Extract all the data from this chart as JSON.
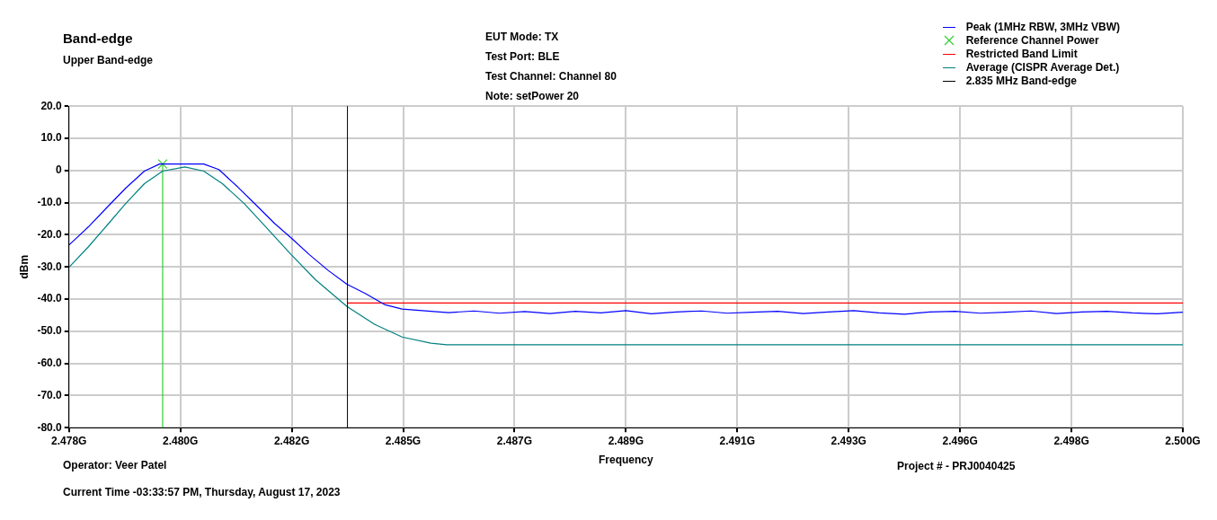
{
  "chart_data": {
    "type": "line",
    "title": "Band-edge",
    "subtitle": "Upper Band-edge",
    "xlabel": "Frequency",
    "ylabel": "dBm",
    "annotations": [
      "EUT Mode: TX",
      "Test Port: BLE",
      "Test Channel: Channel 80",
      "Note: setPower 20",
      "Operator: Veer Patel",
      "Current Time -03:33:57 PM, Thursday, August 17, 2023",
      "Project # - PRJ0040425"
    ],
    "xlim": [
      2.478,
      2.5
    ],
    "xticks": [
      {
        "value": 2.478,
        "label": "2.478G"
      },
      {
        "value": 2.4802,
        "label": "2.480G"
      },
      {
        "value": 2.4824,
        "label": "2.482G"
      },
      {
        "value": 2.4846,
        "label": "2.485G"
      },
      {
        "value": 2.4868,
        "label": "2.487G"
      },
      {
        "value": 2.489,
        "label": "2.489G"
      },
      {
        "value": 2.4912,
        "label": "2.491G"
      },
      {
        "value": 2.4934,
        "label": "2.493G"
      },
      {
        "value": 2.4956,
        "label": "2.496G"
      },
      {
        "value": 2.4978,
        "label": "2.498G"
      },
      {
        "value": 2.5,
        "label": "2.500G"
      }
    ],
    "ylim": [
      -80,
      20
    ],
    "yticks": [
      {
        "value": 20,
        "label": "20.0"
      },
      {
        "value": 10,
        "label": "10.0"
      },
      {
        "value": 0,
        "label": "0"
      },
      {
        "value": -10,
        "label": "-10.0"
      },
      {
        "value": -20,
        "label": "-20.0"
      },
      {
        "value": -30,
        "label": "-30.0"
      },
      {
        "value": -40,
        "label": "-40.0"
      },
      {
        "value": -50,
        "label": "-50.0"
      },
      {
        "value": -60,
        "label": "-60.0"
      },
      {
        "value": -70,
        "label": "-70.0"
      },
      {
        "value": -80,
        "label": "-80.0"
      }
    ],
    "grid": true,
    "legend": "top right",
    "series": [
      {
        "name": "Peak (1MHz RBW, 3MHz VBW)",
        "type": "line",
        "color": "#0000ff",
        "x": [
          2.478,
          2.47838,
          2.47875,
          2.47912,
          2.47949,
          2.47979,
          2.48066,
          2.48096,
          2.48133,
          2.4817,
          2.48207,
          2.48239,
          2.48275,
          2.48312,
          2.48349,
          2.48386,
          2.48423,
          2.48458,
          2.48515,
          2.4855,
          2.486,
          2.4865,
          2.487,
          2.4875,
          2.488,
          2.4885,
          2.489,
          2.4895,
          2.49,
          2.4905,
          2.491,
          2.4915,
          2.492,
          2.4925,
          2.493,
          2.4935,
          2.494,
          2.4945,
          2.495,
          2.4955,
          2.496,
          2.4965,
          2.497,
          2.4975,
          2.498,
          2.4985,
          2.499,
          2.4995,
          2.5
        ],
        "values": [
          -23.2,
          -17.6,
          -11.5,
          -5.5,
          -0.2,
          2.0,
          2.0,
          0.3,
          -5.1,
          -10.8,
          -16.6,
          -21.0,
          -26.2,
          -31.1,
          -35.4,
          -38.3,
          -41.7,
          -43.1,
          -43.8,
          -44.2,
          -43.7,
          -44.4,
          -43.9,
          -44.5,
          -43.8,
          -44.3,
          -43.6,
          -44.6,
          -44.0,
          -43.7,
          -44.4,
          -44.1,
          -43.8,
          -44.5,
          -44.0,
          -43.6,
          -44.3,
          -44.7,
          -44.0,
          -43.8,
          -44.4,
          -44.1,
          -43.7,
          -44.5,
          -44.0,
          -43.8,
          -44.3,
          -44.6,
          -44.1
        ]
      },
      {
        "name": "Reference Channel Power",
        "type": "scatter",
        "color": "#33cc33",
        "marker": "cross",
        "x": [
          2.47985
        ],
        "values": [
          2.0
        ]
      },
      {
        "name": "Restricted Band Limit",
        "type": "line",
        "color": "#ff0000",
        "x": [
          2.4835,
          2.5
        ],
        "values": [
          -41.2,
          -41.2
        ]
      },
      {
        "name": "Average (CISPR Average Det.)",
        "type": "line",
        "color": "#008080",
        "x": [
          2.478,
          2.47838,
          2.47875,
          2.47912,
          2.47949,
          2.47985,
          2.48029,
          2.48066,
          2.48103,
          2.48146,
          2.48189,
          2.48239,
          2.48287,
          2.48349,
          2.48404,
          2.48458,
          2.48515,
          2.48546,
          2.5
        ],
        "values": [
          -30.1,
          -23.8,
          -17.1,
          -10.3,
          -4.1,
          -0.2,
          1.1,
          -0.2,
          -4.1,
          -10.3,
          -17.6,
          -26.2,
          -34.0,
          -42.3,
          -47.9,
          -51.8,
          -53.7,
          -54.2,
          -54.2
        ]
      },
      {
        "type": "line",
        "color": "#33cc33",
        "x": [
          2.47985,
          2.47985
        ],
        "values": [
          2.0,
          -80
        ]
      }
    ],
    "ref_lines": [
      {
        "axis": "x",
        "value": 2.4835,
        "label": "2.835 MHz Band-edge",
        "color": "#000000"
      }
    ]
  }
}
